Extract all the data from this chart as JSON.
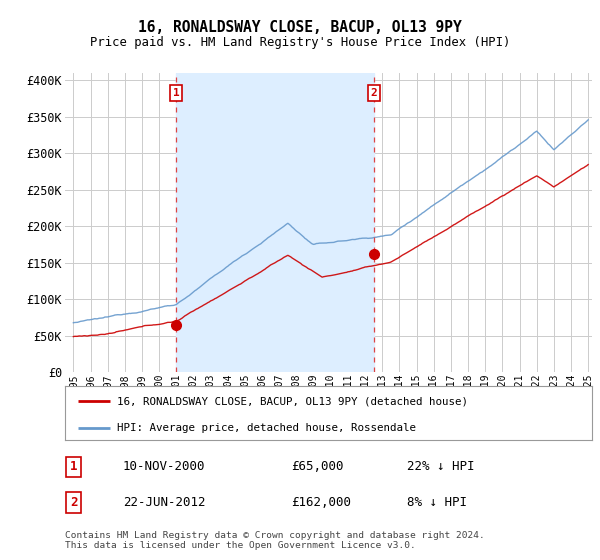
{
  "title": "16, RONALDSWAY CLOSE, BACUP, OL13 9PY",
  "subtitle": "Price paid vs. HM Land Registry's House Price Index (HPI)",
  "legend_line1": "16, RONALDSWAY CLOSE, BACUP, OL13 9PY (detached house)",
  "legend_line2": "HPI: Average price, detached house, Rossendale",
  "transaction1_date": "10-NOV-2000",
  "transaction1_price": "£65,000",
  "transaction1_hpi": "22% ↓ HPI",
  "transaction2_date": "22-JUN-2012",
  "transaction2_price": "£162,000",
  "transaction2_hpi": "8% ↓ HPI",
  "footer": "Contains HM Land Registry data © Crown copyright and database right 2024.\nThis data is licensed under the Open Government Licence v3.0.",
  "red_color": "#cc0000",
  "blue_color": "#6699cc",
  "blue_fill_color": "#ddeeff",
  "vline_color": "#dd4444",
  "background_color": "#ffffff",
  "grid_color": "#cccccc",
  "ylim": [
    0,
    410000
  ],
  "yticks": [
    0,
    50000,
    100000,
    150000,
    200000,
    250000,
    300000,
    350000,
    400000
  ],
  "ytick_labels": [
    "£0",
    "£50K",
    "£100K",
    "£150K",
    "£200K",
    "£250K",
    "£300K",
    "£350K",
    "£400K"
  ],
  "transaction1_x": 2001.0,
  "transaction1_y": 65000,
  "transaction2_x": 2012.5,
  "transaction2_y": 162000,
  "vline1_x": 2001.0,
  "vline2_x": 2012.5,
  "xmin": 1995,
  "xmax": 2025
}
